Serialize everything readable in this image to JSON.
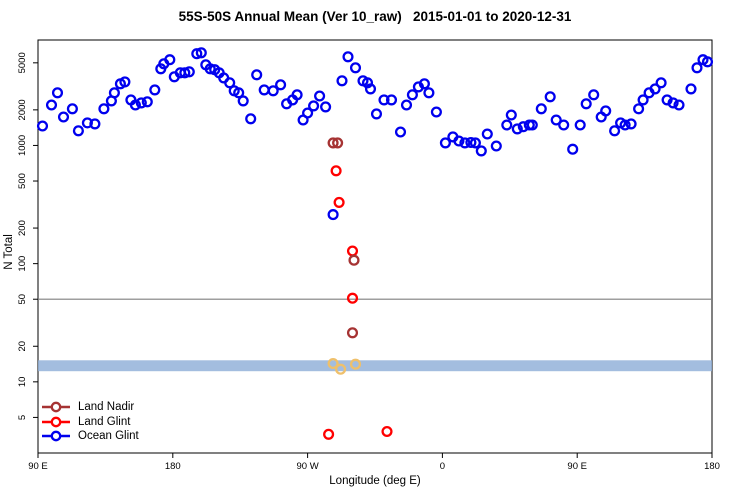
{
  "title": "55S-50S Annual Mean (Ver 10_raw)   2015-01-01 to 2020-12-31",
  "chart_data": {
    "type": "scatter",
    "title": "55S-50S Annual Mean (Ver 10_raw)   2015-01-01 to 2020-12-31",
    "xlabel": "Longitude (deg E)",
    "ylabel": "N Total",
    "x_axis": {
      "note": "longitude wraps eastward: 90E -> 180 -> 90W -> 0 -> 90E -> 180; stored as unwrapped axis degrees 90..540",
      "range": [
        90,
        540
      ],
      "ticks": [
        90,
        180,
        270,
        360,
        450,
        540
      ],
      "tick_labels": [
        "90 E",
        "180",
        "90 W",
        "0",
        "90 E",
        "180"
      ]
    },
    "y_axis": {
      "scale": "log",
      "range": [
        2.5,
        7800
      ],
      "ticks": [
        5,
        10,
        20,
        50,
        100,
        200,
        500,
        1000,
        2000,
        5000
      ]
    },
    "grid": false,
    "legend_position": "bottom-left",
    "ref_line": {
      "value": 50,
      "color": "#7F7F7F"
    },
    "band": {
      "from": 12.3,
      "to": 15.2,
      "color": "#8FAFD8",
      "opacity": 0.82
    },
    "series": [
      {
        "name": "Land Nadir",
        "color": "#A63333",
        "in_legend": true,
        "marker": "open-circle",
        "points": [
          [
            287,
            1050
          ],
          [
            290,
            1050
          ],
          [
            301,
            107
          ],
          [
            300,
            26
          ]
        ]
      },
      {
        "name": "Land Glint",
        "color": "#FF0000",
        "in_legend": true,
        "marker": "open-circle",
        "points": [
          [
            289,
            610
          ],
          [
            291,
            330
          ],
          [
            300,
            128
          ],
          [
            300,
            51
          ],
          [
            284,
            3.6
          ],
          [
            323,
            3.8
          ]
        ]
      },
      {
        "name": "Ocean Glint",
        "color": "#0000EE",
        "in_legend": true,
        "marker": "open-circle",
        "points": [
          [
            93,
            1460
          ],
          [
            99,
            2200
          ],
          [
            103,
            2790
          ],
          [
            107,
            1740
          ],
          [
            113,
            2040
          ],
          [
            117,
            1330
          ],
          [
            123,
            1550
          ],
          [
            128,
            1520
          ],
          [
            134,
            2040
          ],
          [
            139,
            2380
          ],
          [
            141,
            2790
          ],
          [
            145,
            3320
          ],
          [
            148,
            3450
          ],
          [
            152,
            2430
          ],
          [
            155,
            2200
          ],
          [
            159,
            2290
          ],
          [
            163,
            2340
          ],
          [
            168,
            2950
          ],
          [
            172,
            4450
          ],
          [
            174,
            4910
          ],
          [
            178,
            5310
          ],
          [
            181,
            3810
          ],
          [
            185,
            4120
          ],
          [
            188,
            4120
          ],
          [
            191,
            4200
          ],
          [
            196,
            5970
          ],
          [
            199,
            6080
          ],
          [
            202,
            4810
          ],
          [
            205,
            4450
          ],
          [
            208,
            4370
          ],
          [
            211,
            4120
          ],
          [
            214,
            3730
          ],
          [
            218,
            3390
          ],
          [
            221,
            2900
          ],
          [
            224,
            2790
          ],
          [
            227,
            2380
          ],
          [
            232,
            1680
          ],
          [
            236,
            3960
          ],
          [
            241,
            2950
          ],
          [
            247,
            2900
          ],
          [
            252,
            3260
          ],
          [
            256,
            2250
          ],
          [
            260,
            2430
          ],
          [
            263,
            2680
          ],
          [
            267,
            1640
          ],
          [
            270,
            1880
          ],
          [
            274,
            2160
          ],
          [
            278,
            2620
          ],
          [
            282,
            2120
          ],
          [
            287,
            260
          ],
          [
            293,
            3520
          ],
          [
            297,
            5620
          ],
          [
            302,
            4540
          ],
          [
            307,
            3520
          ],
          [
            310,
            3390
          ],
          [
            312,
            3010
          ],
          [
            316,
            1850
          ],
          [
            321,
            2430
          ],
          [
            326,
            2430
          ],
          [
            332,
            1300
          ],
          [
            336,
            2200
          ],
          [
            340,
            2680
          ],
          [
            344,
            3130
          ],
          [
            348,
            3320
          ],
          [
            351,
            2790
          ],
          [
            356,
            1920
          ],
          [
            362,
            1050
          ],
          [
            367,
            1180
          ],
          [
            371,
            1090
          ],
          [
            375,
            1050
          ],
          [
            379,
            1060
          ],
          [
            382,
            1050
          ],
          [
            386,
            900
          ],
          [
            390,
            1250
          ],
          [
            396,
            990
          ],
          [
            403,
            1490
          ],
          [
            406,
            1810
          ],
          [
            410,
            1380
          ],
          [
            414,
            1440
          ],
          [
            418,
            1490
          ],
          [
            420,
            1490
          ],
          [
            426,
            2040
          ],
          [
            432,
            2580
          ],
          [
            436,
            1640
          ],
          [
            441,
            1490
          ],
          [
            447,
            930
          ],
          [
            452,
            1490
          ],
          [
            456,
            2250
          ],
          [
            461,
            2680
          ],
          [
            466,
            1740
          ],
          [
            469,
            1960
          ],
          [
            475,
            1330
          ],
          [
            479,
            1550
          ],
          [
            482,
            1490
          ],
          [
            486,
            1520
          ],
          [
            491,
            2040
          ],
          [
            494,
            2430
          ],
          [
            498,
            2790
          ],
          [
            502,
            3010
          ],
          [
            506,
            3390
          ],
          [
            510,
            2430
          ],
          [
            514,
            2290
          ],
          [
            518,
            2200
          ],
          [
            526,
            3010
          ],
          [
            530,
            4540
          ],
          [
            534,
            5310
          ],
          [
            537,
            5100
          ]
        ]
      },
      {
        "name": "obscured-gold-points",
        "color": "#EFC06B",
        "in_legend": false,
        "marker": "open-circle",
        "over_band": true,
        "points": [
          [
            287,
            14.3
          ],
          [
            292,
            12.8
          ],
          [
            302,
            14.1
          ]
        ]
      }
    ]
  }
}
